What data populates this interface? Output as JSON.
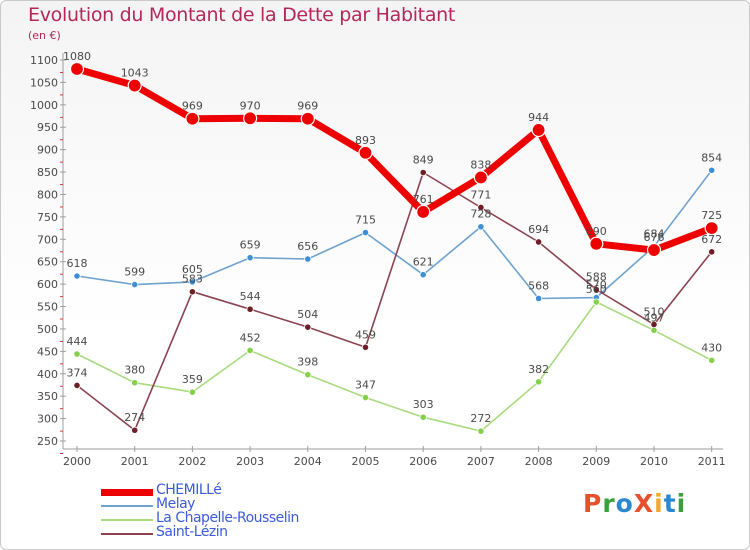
{
  "title": "Evolution du Montant de la Dette par Habitant",
  "unit": "(en €)",
  "logo": {
    "text": "ProXiti",
    "colors": [
      "#e8502c",
      "#3aa13a",
      "#2a87d0",
      "#e8502c",
      "#f2a92d",
      "#2a87d0",
      "#3aa13a"
    ]
  },
  "colors": {
    "title": "#b5275a",
    "axis": "#9e9e9e",
    "tick_dash": "#e23535",
    "legend_text": "#3b5bdb",
    "label_text": "#4a4a4a"
  },
  "chart_data": {
    "type": "line",
    "title": "Evolution du Montant de la Dette par Habitant",
    "ylabel": "(en €)",
    "xlabel": "",
    "x": [
      "2000",
      "2001",
      "2002",
      "2003",
      "2004",
      "2005",
      "2006",
      "2007",
      "2008",
      "2009",
      "2010",
      "2011"
    ],
    "ylim": [
      250,
      1100
    ],
    "yticks": [
      250,
      300,
      350,
      400,
      450,
      500,
      550,
      600,
      650,
      700,
      750,
      800,
      850,
      900,
      950,
      1000,
      1050,
      1100
    ],
    "grid": false,
    "legend_position": "bottom-left",
    "series": [
      {
        "name": "CHEMILLé",
        "color": "#ee0000",
        "marker": "#ee0000",
        "width": 7,
        "r": 6.5,
        "values": [
          1080,
          1043,
          969,
          970,
          969,
          893,
          761,
          838,
          944,
          690,
          676,
          725
        ]
      },
      {
        "name": "Melay",
        "color": "#6ea2cf",
        "marker": "#3d8fd6",
        "width": 1.6,
        "r": 3.2,
        "values": [
          618,
          599,
          605,
          659,
          656,
          715,
          621,
          728,
          568,
          570,
          684,
          854
        ]
      },
      {
        "name": "La Chapelle-Rousselin",
        "color": "#a9db7e",
        "marker": "#84d04a",
        "width": 1.6,
        "r": 3.2,
        "values": [
          444,
          380,
          359,
          452,
          398,
          347,
          303,
          272,
          382,
          560,
          497,
          430
        ]
      },
      {
        "name": "Saint-Lézin",
        "color": "#8c4350",
        "marker": "#6e1e26",
        "width": 1.6,
        "r": 3.2,
        "values": [
          374,
          274,
          583,
          544,
          504,
          459,
          849,
          771,
          694,
          588,
          510,
          672
        ]
      }
    ],
    "point_labels": {
      "CHEMILLé": [
        "1080",
        "1043",
        "969",
        "970",
        "969",
        "893",
        "761",
        "838",
        "944",
        "690",
        "676",
        "725"
      ],
      "Melay": [
        "618",
        "599",
        "605",
        "659",
        "656",
        "715",
        "621",
        "728",
        "568",
        "570",
        "684",
        "854"
      ],
      "La Chapelle-Rousselin": [
        "444",
        "380",
        "359",
        "452",
        "398",
        "347",
        "303",
        "272",
        "382",
        "560",
        "497",
        "430"
      ],
      "Saint-Lézin": [
        "374",
        "274",
        "583",
        "544",
        "504",
        "459",
        "849",
        "771",
        "694",
        "588",
        "510",
        "672"
      ]
    }
  }
}
